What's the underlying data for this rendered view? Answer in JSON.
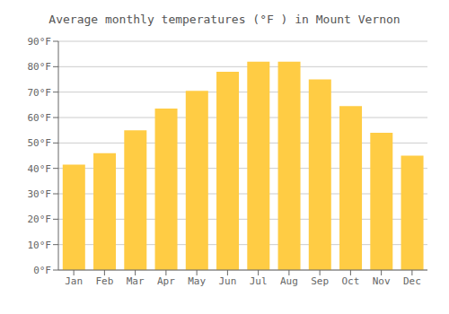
{
  "chart_data": {
    "type": "bar",
    "title": "Average monthly temperatures (°F ) in Mount Vernon",
    "categories": [
      "Jan",
      "Feb",
      "Mar",
      "Apr",
      "May",
      "Jun",
      "Jul",
      "Aug",
      "Sep",
      "Oct",
      "Nov",
      "Dec"
    ],
    "values": [
      41.5,
      46.0,
      55.0,
      63.5,
      70.5,
      78.0,
      82.0,
      82.0,
      75.0,
      64.5,
      54.0,
      45.0
    ],
    "color": "#FFCC44",
    "ylim": [
      0,
      90
    ],
    "yticks": [
      {
        "value": 0,
        "label": "0°F"
      },
      {
        "value": 10,
        "label": "10°F"
      },
      {
        "value": 20,
        "label": "20°F"
      },
      {
        "value": 30,
        "label": "30°F"
      },
      {
        "value": 40,
        "label": "40°F"
      },
      {
        "value": 50,
        "label": "50°F"
      },
      {
        "value": 60,
        "label": "60°F"
      },
      {
        "value": 70,
        "label": "70°F"
      },
      {
        "value": 80,
        "label": "80°F"
      },
      {
        "value": 90,
        "label": "90°F"
      }
    ],
    "grid": true
  }
}
